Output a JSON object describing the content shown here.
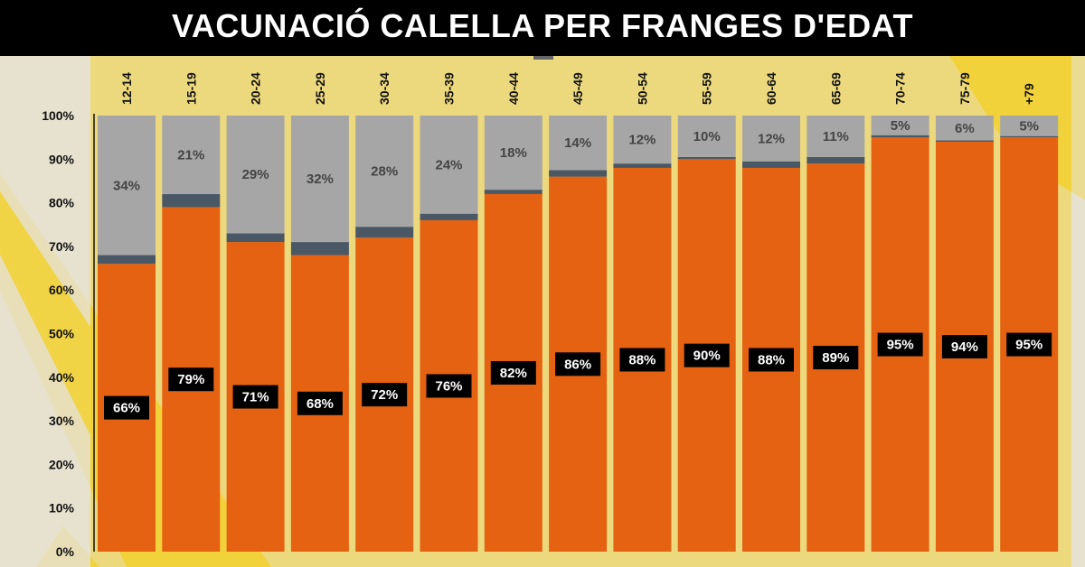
{
  "title": "VACUNACIÓ CALELLA PER FRANGES D'EDAT",
  "colors": {
    "background": "#e6e2cf",
    "yellow": "#f2d23a",
    "title_bar": "#000000",
    "vaccinated": "#e46212",
    "partial": "#4a5866",
    "unvaccinated": "#a6a6a6",
    "label_box": "#000000"
  },
  "chart_data": {
    "type": "bar",
    "stacked": true,
    "categories": [
      "12-14",
      "15-19",
      "20-24",
      "25-29",
      "30-34",
      "35-39",
      "40-44",
      "45-49",
      "50-54",
      "55-59",
      "60-64",
      "65-69",
      "70-74",
      "75-79",
      "+79"
    ],
    "series": [
      {
        "color": "#e46212",
        "values": [
          66,
          79,
          71,
          68,
          72,
          76,
          82,
          86,
          88,
          90,
          88,
          89,
          95,
          94,
          95
        ],
        "labels": [
          "66%",
          "79%",
          "71%",
          "68%",
          "72%",
          "76%",
          "82%",
          "86%",
          "88%",
          "90%",
          "88%",
          "89%",
          "95%",
          "94%",
          "95%"
        ]
      },
      {
        "color": "#4a5866",
        "values": [
          2,
          3,
          2,
          3,
          2.5,
          1.5,
          1,
          1.5,
          1,
          0.5,
          1.5,
          1.5,
          0.5,
          0.3,
          0.3
        ]
      },
      {
        "color": "#a6a6a6",
        "values": [
          34,
          21,
          29,
          32,
          28,
          24,
          18,
          14,
          12,
          10,
          12,
          11,
          5,
          6,
          5
        ],
        "labels": [
          "34%",
          "21%",
          "29%",
          "32%",
          "28%",
          "24%",
          "18%",
          "14%",
          "12%",
          "10%",
          "12%",
          "11%",
          "5%",
          "6%",
          "5%"
        ]
      }
    ],
    "y_ticks": [
      "0%",
      "10%",
      "20%",
      "30%",
      "40%",
      "50%",
      "60%",
      "70%",
      "80%",
      "90%",
      "100%"
    ],
    "ylim": [
      0,
      100
    ],
    "category_axis_position": "top",
    "grid": false,
    "legend": "none"
  }
}
